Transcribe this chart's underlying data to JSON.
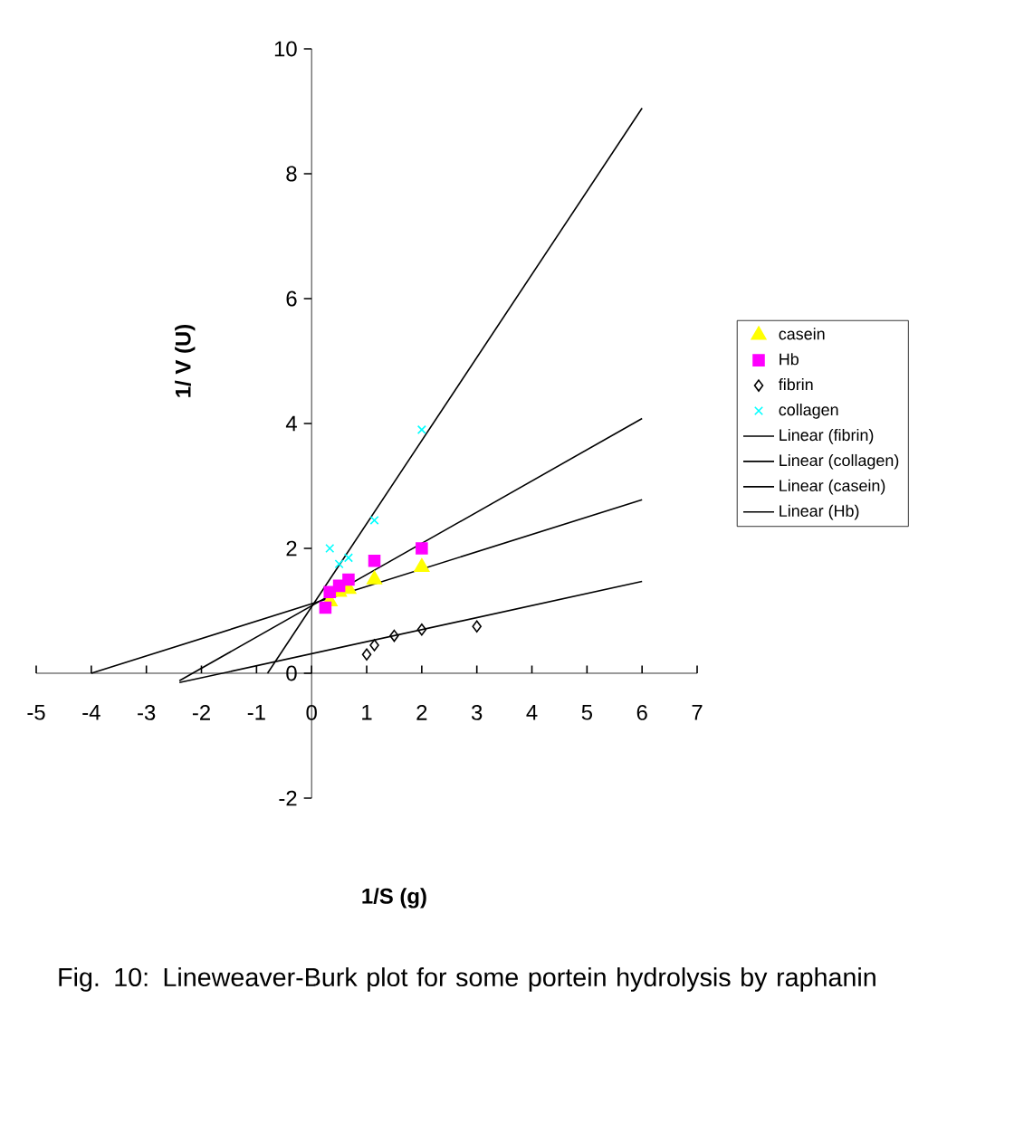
{
  "chart_data": {
    "type": "scatter",
    "xlabel": "1/S (g)",
    "ylabel": "1/ V (U)",
    "annotations": [
      "Fig. 10: Lineweaver-Burk plot for some portein hydrolysis by raphanin"
    ],
    "xlim": [
      -5,
      7
    ],
    "ylim": [
      -2,
      10
    ],
    "xticks": [
      -5,
      -4,
      -3,
      -2,
      -1,
      0,
      1,
      2,
      3,
      4,
      5,
      6,
      7
    ],
    "yticks": [
      -2,
      0,
      2,
      4,
      6,
      8,
      10
    ],
    "grid": false,
    "legend": "right",
    "series": [
      {
        "name": "casein",
        "marker": "triangle",
        "color": "#ffff00",
        "x": [
          0.33,
          0.5,
          0.67,
          1.14,
          2
        ],
        "values": [
          1.15,
          1.3,
          1.35,
          1.5,
          1.7
        ]
      },
      {
        "name": "Hb",
        "marker": "square",
        "color": "#ff00ff",
        "x": [
          0.25,
          0.33,
          0.5,
          0.67,
          1.14,
          2
        ],
        "values": [
          1.05,
          1.3,
          1.4,
          1.5,
          1.8,
          2.0
        ]
      },
      {
        "name": "fibrin",
        "marker": "diamond",
        "color": "#000000",
        "x": [
          1,
          1.14,
          1.5,
          2,
          3
        ],
        "values": [
          0.3,
          0.45,
          0.6,
          0.7,
          0.75
        ]
      },
      {
        "name": "collagen",
        "marker": "cross",
        "color": "#00ffff",
        "x": [
          0.33,
          0.5,
          0.67,
          1.14,
          2
        ],
        "values": [
          2.0,
          1.75,
          1.85,
          2.45,
          3.9
        ]
      },
      {
        "name": "Linear (fibrin)",
        "type": "line",
        "marker": "none",
        "color": "#000000",
        "x": [
          -2.4,
          6
        ],
        "values": [
          -0.15,
          1.47
        ]
      },
      {
        "name": "Linear (collagen)",
        "type": "line",
        "marker": "none",
        "color": "#000000",
        "x": [
          -0.8,
          6
        ],
        "values": [
          0,
          9.05
        ]
      },
      {
        "name": "Linear (casein)",
        "type": "line",
        "marker": "none",
        "color": "#000000",
        "x": [
          -4,
          6
        ],
        "values": [
          0,
          2.78
        ]
      },
      {
        "name": "Linear (Hb)",
        "type": "line",
        "marker": "none",
        "color": "#000000",
        "x": [
          -2.4,
          6
        ],
        "values": [
          -0.12,
          4.08
        ]
      }
    ]
  }
}
